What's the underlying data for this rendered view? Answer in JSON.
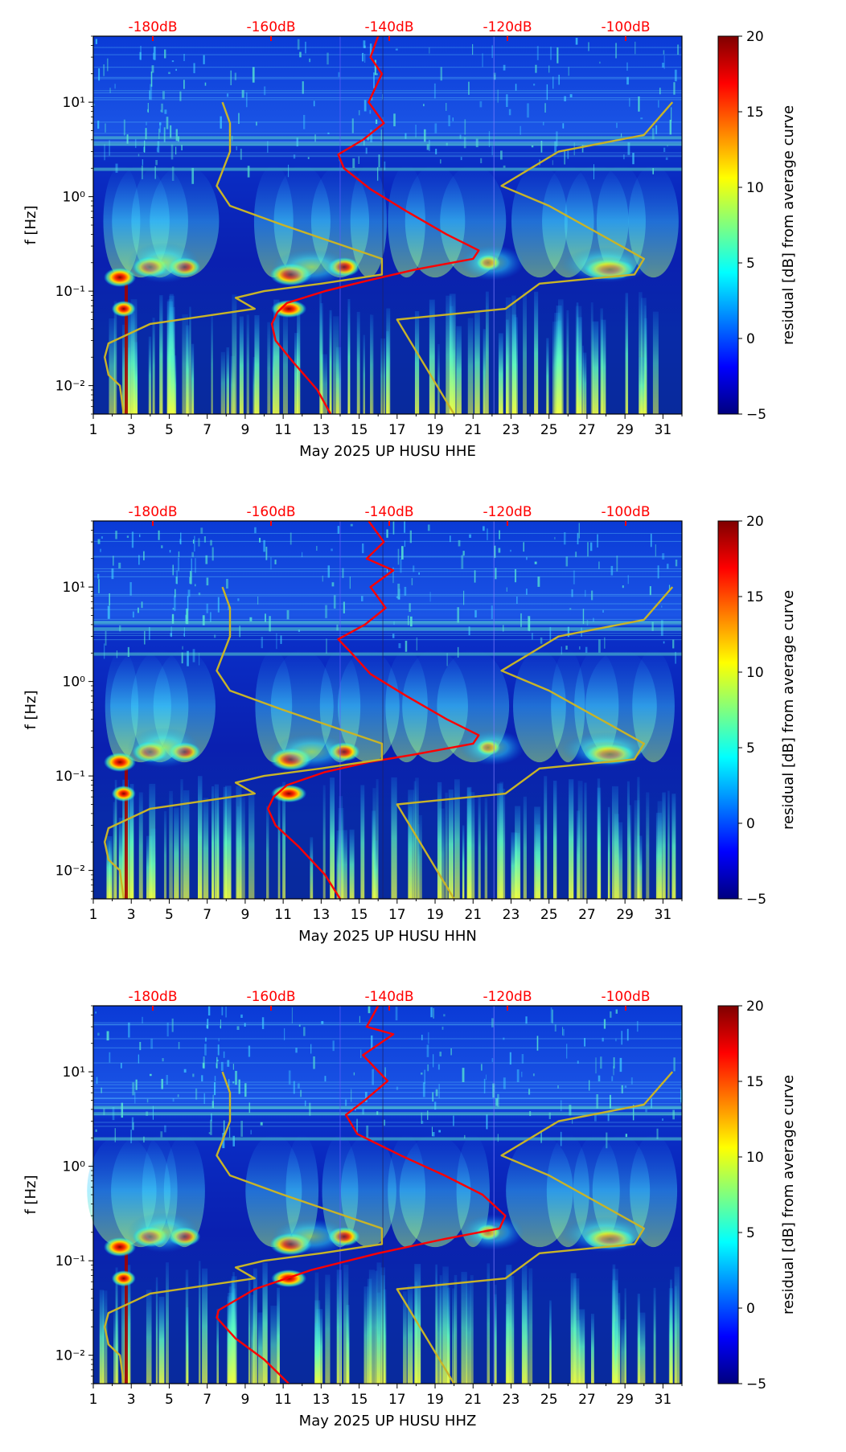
{
  "chart_data": [
    {
      "type": "heatmap",
      "xlabel": "May 2025 UP HUSU  HHE",
      "ylabel": "f [Hz]",
      "xlim": [
        1,
        32
      ],
      "ylim": [
        0.005,
        50
      ],
      "y_scale": "log",
      "x_ticks": [
        "1",
        "3",
        "5",
        "7",
        "9",
        "11",
        "13",
        "15",
        "17",
        "19",
        "21",
        "23",
        "25",
        "27",
        "29",
        "31"
      ],
      "y_ticks": [
        "10⁻²",
        "10⁻¹",
        "10⁰",
        "10¹"
      ],
      "top_axis_labels": [
        "-180dB",
        "-160dB",
        "-140dB",
        "-120dB",
        "-100dB"
      ],
      "top_axis_color": "#ff0000",
      "colorbar": {
        "label": "residual [dB] from average curve",
        "range": [
          -5,
          20
        ],
        "ticks": [
          "−5",
          "0",
          "5",
          "10",
          "15",
          "20"
        ],
        "colormap": "jet"
      },
      "series": [
        {
          "color": "#ff0000",
          "points": [
            [
              16,
              50
            ],
            [
              15.6,
              30
            ],
            [
              16.2,
              20
            ],
            [
              15.5,
              10
            ],
            [
              16.3,
              6
            ],
            [
              15.2,
              4
            ],
            [
              13.9,
              2.8
            ],
            [
              14.2,
              2
            ],
            [
              15.6,
              1.2
            ],
            [
              17.5,
              0.7
            ],
            [
              19.6,
              0.4
            ],
            [
              21.3,
              0.27
            ],
            [
              21.0,
              0.22
            ],
            [
              18,
              0.17
            ],
            [
              15.5,
              0.13
            ],
            [
              13.2,
              0.1
            ],
            [
              11.2,
              0.075
            ],
            [
              10.7,
              0.06
            ],
            [
              10.4,
              0.045
            ],
            [
              10.6,
              0.03
            ],
            [
              11.5,
              0.018
            ],
            [
              12.8,
              0.009
            ],
            [
              13.5,
              0.005
            ]
          ]
        },
        {
          "color": "#c8b428",
          "points": [
            [
              7.8,
              10
            ],
            [
              8.2,
              6
            ],
            [
              8.2,
              3
            ],
            [
              7.5,
              1.3
            ],
            [
              8.2,
              0.8
            ],
            [
              11,
              0.5
            ],
            [
              16.2,
              0.22
            ],
            [
              16.2,
              0.15
            ],
            [
              13,
              0.12
            ],
            [
              10.0,
              0.1
            ],
            [
              8.5,
              0.085
            ],
            [
              9.5,
              0.065
            ],
            [
              4,
              0.045
            ],
            [
              1.8,
              0.028
            ],
            [
              1.6,
              0.02
            ],
            [
              1.8,
              0.013
            ],
            [
              2.4,
              0.01
            ],
            [
              2.6,
              0.005
            ]
          ]
        },
        {
          "color": "#c8b428",
          "points": [
            [
              31.5,
              10
            ],
            [
              30,
              4.5
            ],
            [
              25.5,
              3
            ],
            [
              22.5,
              1.3
            ],
            [
              25,
              0.8
            ],
            [
              30,
              0.22
            ],
            [
              29.5,
              0.15
            ],
            [
              24.5,
              0.12
            ],
            [
              22.7,
              0.065
            ],
            [
              17,
              0.05
            ],
            [
              20,
              0.005
            ]
          ]
        }
      ]
    },
    {
      "type": "heatmap",
      "xlabel": "May 2025 UP HUSU  HHN",
      "ylabel": "f [Hz]",
      "xlim": [
        1,
        32
      ],
      "ylim": [
        0.005,
        50
      ],
      "y_scale": "log",
      "x_ticks": [
        "1",
        "3",
        "5",
        "7",
        "9",
        "11",
        "13",
        "15",
        "17",
        "19",
        "21",
        "23",
        "25",
        "27",
        "29",
        "31"
      ],
      "y_ticks": [
        "10⁻²",
        "10⁻¹",
        "10⁰",
        "10¹"
      ],
      "top_axis_labels": [
        "-180dB",
        "-160dB",
        "-140dB",
        "-120dB",
        "-100dB"
      ],
      "top_axis_color": "#ff0000",
      "colorbar": {
        "label": "residual [dB] from average curve",
        "range": [
          -5,
          20
        ],
        "ticks": [
          "−5",
          "0",
          "5",
          "10",
          "15",
          "20"
        ],
        "colormap": "jet"
      },
      "series": [
        {
          "color": "#ff0000",
          "points": [
            [
              15.5,
              50
            ],
            [
              16.3,
              30
            ],
            [
              15.4,
              20
            ],
            [
              16.8,
              15
            ],
            [
              15.6,
              10
            ],
            [
              16.4,
              6
            ],
            [
              15.3,
              4
            ],
            [
              13.9,
              2.8
            ],
            [
              14.6,
              2
            ],
            [
              15.6,
              1.2
            ],
            [
              17.5,
              0.7
            ],
            [
              19.6,
              0.4
            ],
            [
              21.3,
              0.27
            ],
            [
              21.0,
              0.22
            ],
            [
              18,
              0.17
            ],
            [
              15.5,
              0.14
            ],
            [
              13.2,
              0.11
            ],
            [
              11.2,
              0.08
            ],
            [
              10.5,
              0.06
            ],
            [
              10.2,
              0.045
            ],
            [
              10.6,
              0.03
            ],
            [
              11.8,
              0.018
            ],
            [
              13.2,
              0.009
            ],
            [
              14,
              0.005
            ]
          ]
        },
        {
          "color": "#c8b428",
          "points": [
            [
              7.8,
              10
            ],
            [
              8.2,
              6
            ],
            [
              8.2,
              3
            ],
            [
              7.5,
              1.3
            ],
            [
              8.2,
              0.8
            ],
            [
              11,
              0.5
            ],
            [
              16.2,
              0.22
            ],
            [
              16.2,
              0.15
            ],
            [
              13,
              0.12
            ],
            [
              10.0,
              0.1
            ],
            [
              8.5,
              0.085
            ],
            [
              9.5,
              0.065
            ],
            [
              4,
              0.045
            ],
            [
              1.8,
              0.028
            ],
            [
              1.6,
              0.02
            ],
            [
              1.8,
              0.013
            ],
            [
              2.4,
              0.01
            ],
            [
              2.6,
              0.005
            ]
          ]
        },
        {
          "color": "#c8b428",
          "points": [
            [
              31.5,
              10
            ],
            [
              30,
              4.5
            ],
            [
              25.5,
              3
            ],
            [
              22.5,
              1.3
            ],
            [
              25,
              0.8
            ],
            [
              30,
              0.22
            ],
            [
              29.5,
              0.15
            ],
            [
              24.5,
              0.12
            ],
            [
              22.7,
              0.065
            ],
            [
              17,
              0.05
            ],
            [
              20,
              0.005
            ]
          ]
        }
      ]
    },
    {
      "type": "heatmap",
      "xlabel": "May 2025 UP HUSU  HHZ",
      "ylabel": "f [Hz]",
      "xlim": [
        1,
        32
      ],
      "ylim": [
        0.005,
        50
      ],
      "y_scale": "log",
      "x_ticks": [
        "1",
        "3",
        "5",
        "7",
        "9",
        "11",
        "13",
        "15",
        "17",
        "19",
        "21",
        "23",
        "25",
        "27",
        "29",
        "31"
      ],
      "y_ticks": [
        "10⁻²",
        "10⁻¹",
        "10⁰",
        "10¹"
      ],
      "top_axis_labels": [
        "-180dB",
        "-160dB",
        "-140dB",
        "-120dB",
        "-100dB"
      ],
      "top_axis_color": "#ff0000",
      "colorbar": {
        "label": "residual [dB] from average curve",
        "range": [
          -5,
          20
        ],
        "ticks": [
          "−5",
          "0",
          "5",
          "10",
          "15",
          "20"
        ],
        "colormap": "jet"
      },
      "series": [
        {
          "color": "#ff0000",
          "points": [
            [
              16,
              50
            ],
            [
              15.4,
              30
            ],
            [
              16.8,
              25
            ],
            [
              15.2,
              15
            ],
            [
              16.5,
              8
            ],
            [
              15.3,
              5
            ],
            [
              14.3,
              3.5
            ],
            [
              14.9,
              2.2
            ],
            [
              17.2,
              1.3
            ],
            [
              19.5,
              0.8
            ],
            [
              21.5,
              0.5
            ],
            [
              22.7,
              0.3
            ],
            [
              22.4,
              0.22
            ],
            [
              19.5,
              0.17
            ],
            [
              16,
              0.12
            ],
            [
              12.5,
              0.08
            ],
            [
              9.5,
              0.05
            ],
            [
              7.6,
              0.03
            ],
            [
              7.5,
              0.025
            ],
            [
              8.5,
              0.015
            ],
            [
              10,
              0.009
            ],
            [
              11.3,
              0.005
            ]
          ]
        },
        {
          "color": "#c8b428",
          "points": [
            [
              7.8,
              10
            ],
            [
              8.2,
              6
            ],
            [
              8.2,
              3
            ],
            [
              7.5,
              1.3
            ],
            [
              8.2,
              0.8
            ],
            [
              11,
              0.5
            ],
            [
              16.2,
              0.22
            ],
            [
              16.2,
              0.15
            ],
            [
              13,
              0.12
            ],
            [
              10.0,
              0.1
            ],
            [
              8.5,
              0.085
            ],
            [
              9.5,
              0.065
            ],
            [
              4,
              0.045
            ],
            [
              1.8,
              0.028
            ],
            [
              1.6,
              0.02
            ],
            [
              1.8,
              0.013
            ],
            [
              2.4,
              0.01
            ],
            [
              2.6,
              0.005
            ]
          ]
        },
        {
          "color": "#c8b428",
          "points": [
            [
              31.5,
              10
            ],
            [
              30,
              4.5
            ],
            [
              25.5,
              3
            ],
            [
              22.5,
              1.3
            ],
            [
              25,
              0.8
            ],
            [
              30,
              0.22
            ],
            [
              29.5,
              0.15
            ],
            [
              24.5,
              0.12
            ],
            [
              22.7,
              0.065
            ],
            [
              17,
              0.05
            ],
            [
              20,
              0.005
            ]
          ]
        }
      ]
    }
  ]
}
